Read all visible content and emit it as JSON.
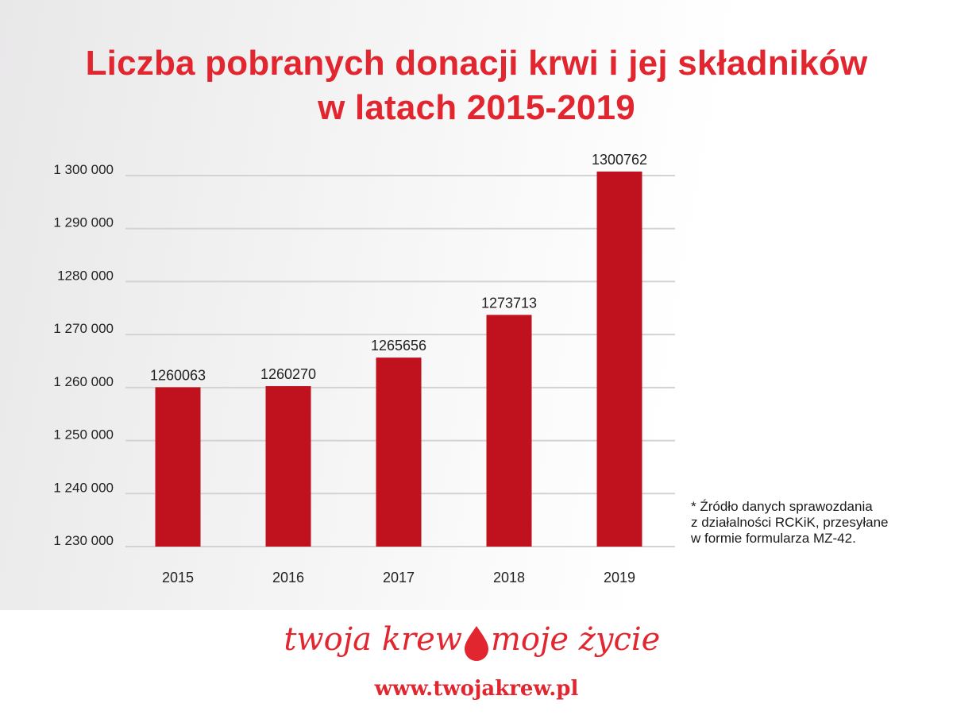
{
  "title": {
    "line1": "Liczba pobranych donacji krwi i jej składników",
    "line2": "w latach 2015-2019"
  },
  "colors": {
    "bar": "#c0111f",
    "title": "#e2262f",
    "grid": "#d3d3d3",
    "text": "#222222"
  },
  "chart_data": {
    "type": "bar",
    "title": "Liczba pobranych donacji krwi i jej składników w latach 2015-2019",
    "categories": [
      "2015",
      "2016",
      "2017",
      "2018",
      "2019"
    ],
    "values": [
      1260063,
      1260270,
      1265656,
      1273713,
      1300762
    ],
    "value_labels": [
      "1260063",
      "1260270",
      "1265656",
      "1273713",
      "1300762"
    ],
    "ylim": [
      1230000,
      1300000
    ],
    "yticks": [
      1230000,
      1240000,
      1250000,
      1260000,
      1270000,
      1280000,
      1290000,
      1300000
    ],
    "ytick_labels": [
      "1 230 000",
      "1 240 000",
      "1 250 000",
      "1 260 000",
      "1 270 000",
      "1280 000",
      "1 290 000",
      "1 300 000"
    ],
    "grid": true,
    "legend": "none",
    "xlabel": "",
    "ylabel": ""
  },
  "note": {
    "line1": "* Źródło danych sprawozdania",
    "line2": "z działalności RCKiK, przesyłane",
    "line3": "w formie formularza MZ-42."
  },
  "footer": {
    "slogan_left": "twoja krew",
    "slogan_right": "moje życie",
    "url": "www.twojakrew.pl"
  }
}
